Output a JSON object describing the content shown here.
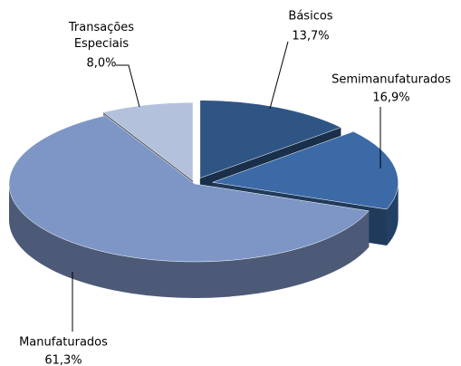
{
  "chart_data": {
    "type": "pie3d",
    "categories": [
      "Básicos",
      "Semimanufaturados",
      "Manufaturados",
      "Transações Especiais"
    ],
    "values": [
      13.7,
      16.9,
      61.3,
      8.0
    ],
    "value_labels": [
      "13,7%",
      "16,9%",
      "61,3%",
      "8,0%"
    ],
    "colors": [
      "#2f5585",
      "#3b6aa6",
      "#7e96c6",
      "#b3c1dc"
    ]
  }
}
